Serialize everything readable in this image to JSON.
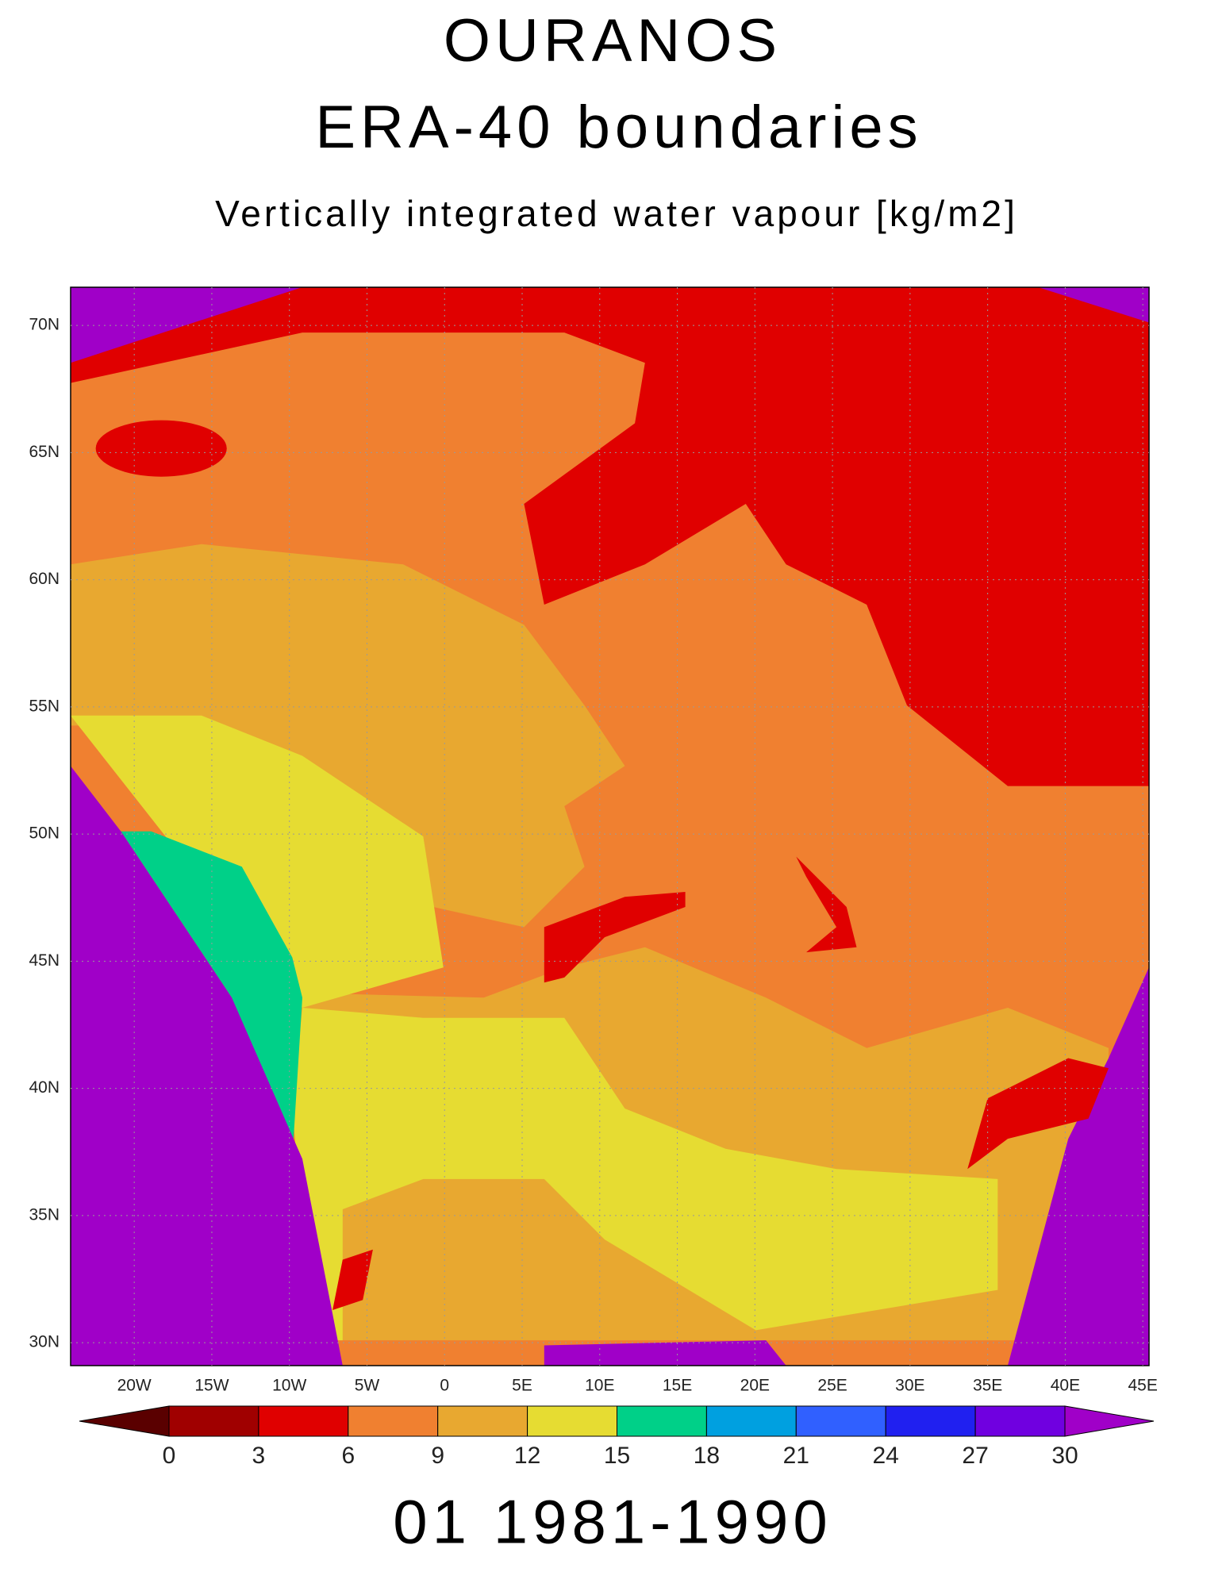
{
  "chart_data": {
    "type": "map",
    "title": "OURANOS",
    "subtitle": "ERA-40 boundaries",
    "variable": "Vertically integrated water vapour [kg/m2]",
    "period": "01 1981-1990",
    "xlim": [
      -24.1,
      45.4
    ],
    "ylim": [
      29.1,
      71.5
    ],
    "xticks": [
      {
        "value": -20,
        "label": "20W"
      },
      {
        "value": -15,
        "label": "15W"
      },
      {
        "value": -10,
        "label": "10W"
      },
      {
        "value": -5,
        "label": "5W"
      },
      0,
      {
        "value": 5,
        "label": "5E"
      },
      {
        "value": 10,
        "label": "10E"
      },
      {
        "value": 15,
        "label": "15E"
      },
      {
        "value": 20,
        "label": "20E"
      },
      {
        "value": 25,
        "label": "25E"
      },
      {
        "value": 30,
        "label": "30E"
      },
      {
        "value": 35,
        "label": "35E"
      },
      {
        "value": 40,
        "label": "40E"
      },
      {
        "value": 45,
        "label": "45E"
      }
    ],
    "yticks": [
      {
        "value": 30,
        "label": "30N"
      },
      {
        "value": 35,
        "label": "35N"
      },
      {
        "value": 40,
        "label": "40N"
      },
      {
        "value": 45,
        "label": "45N"
      },
      {
        "value": 50,
        "label": "50N"
      },
      {
        "value": 55,
        "label": "55N"
      },
      {
        "value": 60,
        "label": "60N"
      },
      {
        "value": 65,
        "label": "65N"
      },
      {
        "value": 70,
        "label": "70N"
      }
    ],
    "grid": true,
    "colorbar": {
      "levels": [
        0,
        3,
        6,
        9,
        12,
        15,
        18,
        21,
        24,
        27,
        30
      ],
      "colors": [
        "#5a0000",
        "#a00000",
        "#e00000",
        "#f08030",
        "#e8a830",
        "#e6dc32",
        "#00d088",
        "#00a0e0",
        "#3060ff",
        "#2020f0",
        "#7000e0",
        "#a000c8"
      ]
    }
  }
}
